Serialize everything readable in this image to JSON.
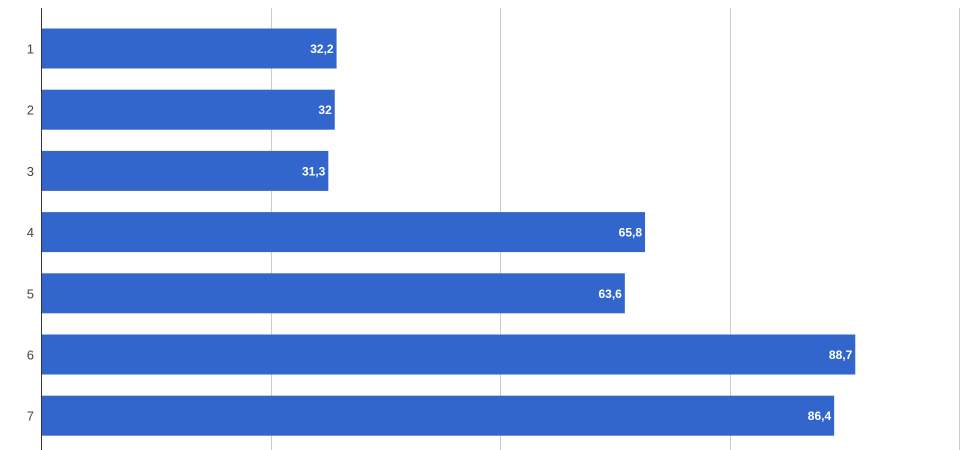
{
  "chart_data": {
    "type": "bar",
    "orientation": "horizontal",
    "categories": [
      "1",
      "2",
      "3",
      "4",
      "5",
      "6",
      "7"
    ],
    "series": [
      {
        "values": [
          32.2,
          32,
          31.3,
          65.8,
          63.6,
          88.7,
          86.4
        ],
        "labels": [
          "32,2",
          "32",
          "31,3",
          "65,8",
          "63,6",
          "88,7",
          "86,4"
        ],
        "color": "#3366cc"
      }
    ],
    "xlim": [
      0,
      100
    ],
    "grid_x_values": [
      25,
      50,
      75,
      100
    ],
    "grid": true,
    "x_tick_labels_shown": false,
    "title": "",
    "xlabel": "",
    "ylabel": "",
    "colors": {
      "bar": "#3366cc",
      "grid": "#cccccc",
      "axis": "#333333",
      "tick_text": "#444444",
      "value_text": "#ffffff"
    }
  }
}
